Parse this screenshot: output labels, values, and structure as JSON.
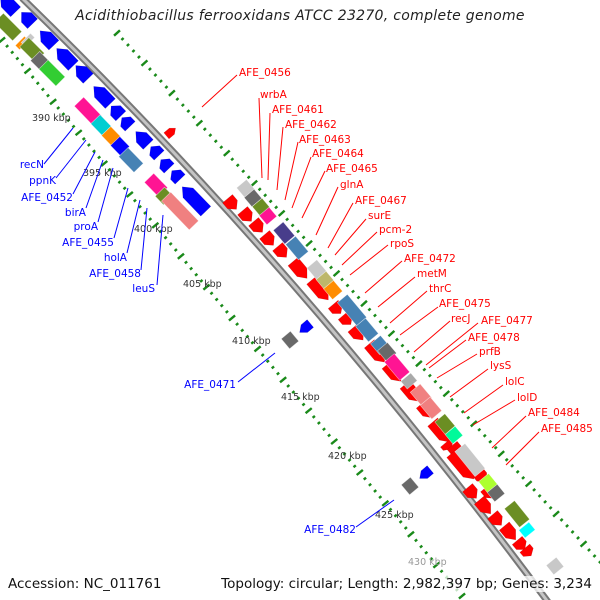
{
  "title": "Acidithiobacillus ferrooxidans ATCC 23270, complete genome",
  "accession": "Accession: NC_011761",
  "topology": "Topology: circular; Length: 2,982,397 bp; Genes: 3,234",
  "ticks": [
    "390 kbp",
    "395 kbp",
    "400 kbp",
    "405 kbp",
    "410 kbp",
    "415 kbp",
    "420 kbp",
    "425 kbp",
    "430 kbp"
  ],
  "reverse_genes": [
    "recN",
    "ppnK",
    "AFE_0452",
    "birA",
    "proA",
    "AFE_0455",
    "holA",
    "AFE_0458",
    "leuS",
    "AFE_0471",
    "AFE_0482"
  ],
  "forward_genes": [
    "AFE_0456",
    "wrbA",
    "AFE_0461",
    "AFE_0462",
    "AFE_0463",
    "AFE_0464",
    "AFE_0465",
    "glnA",
    "AFE_0467",
    "surE",
    "pcm-2",
    "rpoS",
    "AFE_0472",
    "metM",
    "thrC",
    "AFE_0475",
    "recJ",
    "AFE_0477",
    "AFE_0478",
    "prfB",
    "lysS",
    "lolC",
    "lolD",
    "AFE_0484",
    "AFE_0485"
  ],
  "colors": {
    "reverse_strand": "#0000ff",
    "forward_strand": "#ff0000",
    "backbone": "#8a8a8a",
    "tick": "#1a8a1a",
    "tick_label": "#333333"
  }
}
